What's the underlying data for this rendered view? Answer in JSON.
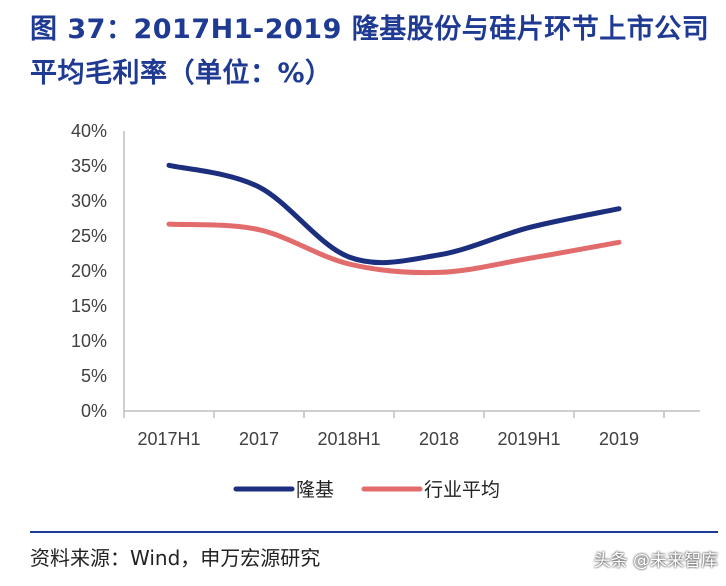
{
  "title": "图 37：2017H1-2019 隆基股份与硅片环节上市公司平均毛利率（单位：%）",
  "source": "资料来源：Wind，申万宏源研究",
  "watermark": "头条 @未来智库",
  "colors": {
    "title": "#1f3a93",
    "longi": "#1b2f7e",
    "industry": "#e26c6c",
    "axis": "#bfbfbf"
  },
  "chart_data": {
    "type": "line",
    "title": "2017H1-2019 隆基股份与硅片环节上市公司平均毛利率（单位：%）",
    "xlabel": "",
    "ylabel": "",
    "categories": [
      "2017H1",
      "2017",
      "2018H1",
      "2018",
      "2019H1",
      "2019"
    ],
    "y_ticks": [
      "0%",
      "5%",
      "10%",
      "15%",
      "20%",
      "25%",
      "30%",
      "35%",
      "40%"
    ],
    "ylim": [
      0,
      40
    ],
    "series": [
      {
        "name": "隆基",
        "values": [
          35.1,
          32.0,
          22.0,
          22.3,
          26.2,
          28.9
        ]
      },
      {
        "name": "行业平均",
        "values": [
          26.7,
          25.9,
          21.0,
          19.8,
          21.8,
          24.1
        ]
      }
    ],
    "legend_position": "bottom",
    "grid": false
  }
}
